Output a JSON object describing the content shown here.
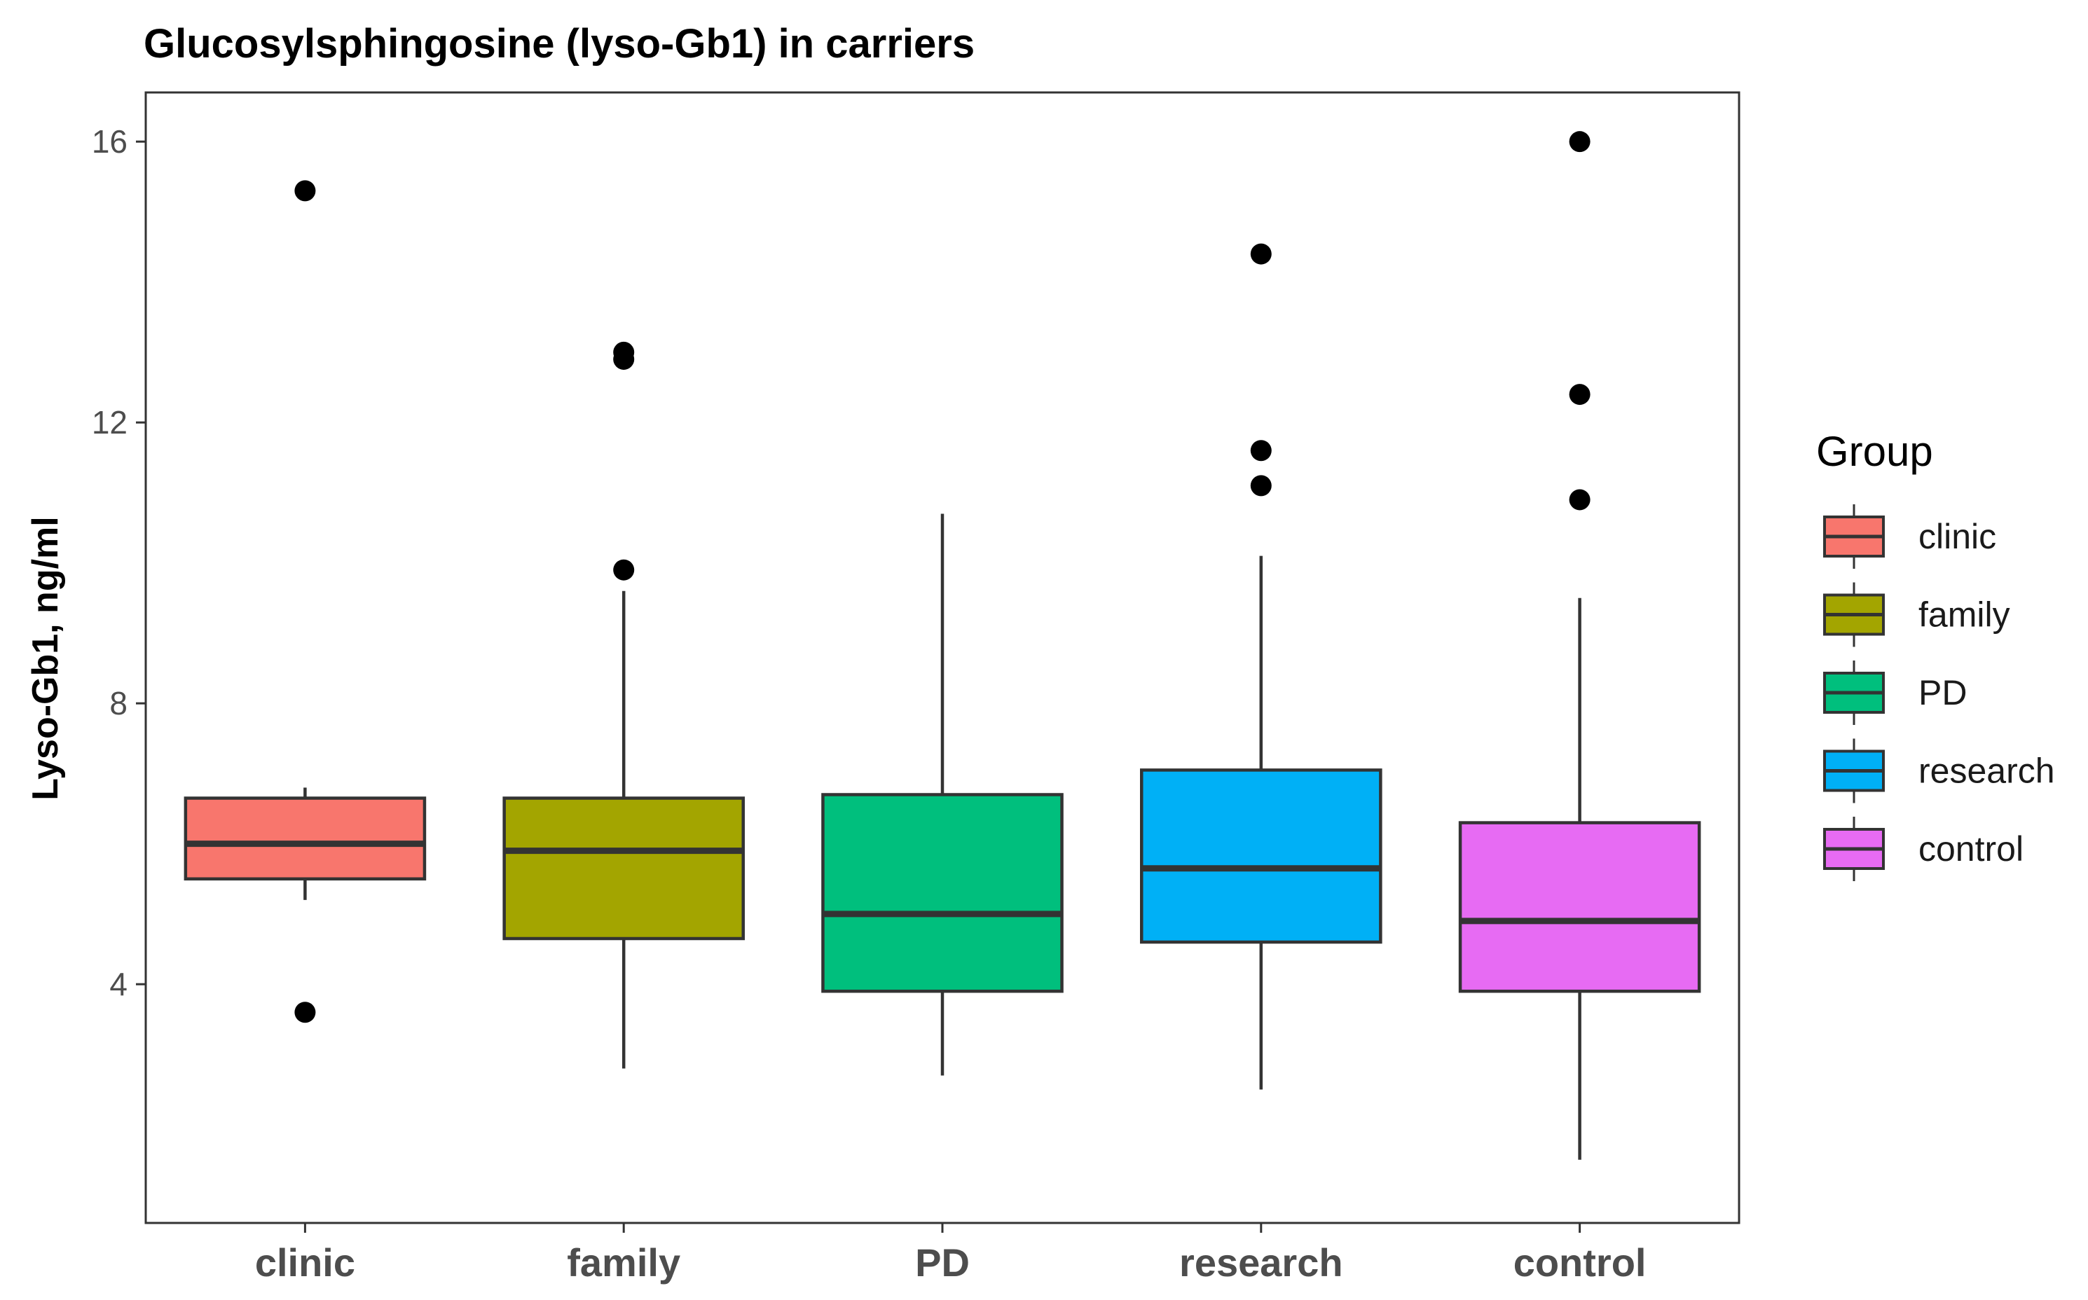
{
  "chart_data": {
    "type": "boxplot",
    "title": "Glucosylsphingosine (lyso-Gb1) in carriers",
    "xlabel": "",
    "ylabel": "Lyso-Gb1, ng/ml",
    "ylim": [
      0.6,
      16.7
    ],
    "yticks": [
      4,
      8,
      12,
      16
    ],
    "ytick_labels": [
      "4",
      "8",
      "12",
      "16"
    ],
    "grid": false,
    "legend": {
      "title": "Group",
      "position": "right"
    },
    "categories": [
      "clinic",
      "family",
      "PD",
      "research",
      "control"
    ],
    "series": [
      {
        "name": "clinic",
        "color": "#F8766D",
        "whisker_low": 5.2,
        "q1": 5.5,
        "median": 6.0,
        "q3": 6.65,
        "whisker_high": 6.8,
        "outliers": [
          3.6,
          15.3
        ]
      },
      {
        "name": "family",
        "color": "#A3A500",
        "whisker_low": 2.8,
        "q1": 4.65,
        "median": 5.9,
        "q3": 6.65,
        "whisker_high": 9.6,
        "outliers": [
          9.9,
          12.9,
          13.0
        ]
      },
      {
        "name": "PD",
        "color": "#00BF7D",
        "whisker_low": 2.7,
        "q1": 3.9,
        "median": 5.0,
        "q3": 6.7,
        "whisker_high": 10.7,
        "outliers": []
      },
      {
        "name": "research",
        "color": "#00B0F6",
        "whisker_low": 2.5,
        "q1": 4.6,
        "median": 5.65,
        "q3": 7.05,
        "whisker_high": 10.1,
        "outliers": [
          11.1,
          11.6,
          14.4
        ]
      },
      {
        "name": "control",
        "color": "#E76BF3",
        "whisker_low": 1.5,
        "q1": 3.9,
        "median": 4.9,
        "q3": 6.3,
        "whisker_high": 9.5,
        "outliers": [
          10.9,
          12.4,
          16.0
        ]
      }
    ]
  }
}
